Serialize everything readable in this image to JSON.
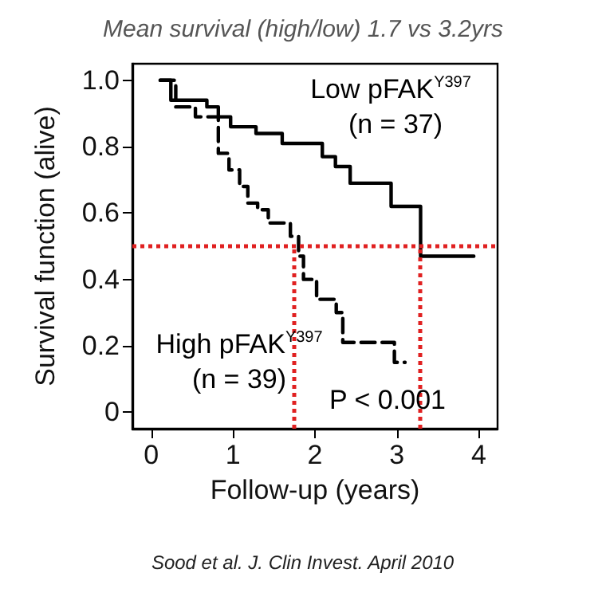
{
  "chart_data": {
    "type": "step",
    "title": "Mean survival (high/low) 1.7 vs 3.2yrs",
    "xlabel": "Follow-up (years)",
    "ylabel": "Survival function (alive)",
    "xlim": [
      -0.23,
      4.23
    ],
    "ylim": [
      -0.05,
      1.05
    ],
    "xticks": [
      0,
      1,
      2,
      3,
      4
    ],
    "yticks": [
      0,
      {
        "value": 0.2,
        "label": "0.2"
      },
      {
        "value": 0.4,
        "label": "0.4"
      },
      {
        "value": 0.6,
        "label": "0.6"
      },
      {
        "value": 0.8,
        "label": "0.8"
      },
      {
        "value": 1,
        "label": "1.0"
      }
    ],
    "series": [
      {
        "color": "#000000",
        "line_style": "solid",
        "x": [
          0.11,
          0.24,
          0.68,
          0.82,
          0.97,
          1.28,
          1.6,
          2.09,
          2.25,
          2.43,
          2.93,
          3.29,
          3.94
        ],
        "values": [
          1.0,
          0.94,
          0.92,
          0.89,
          0.86,
          0.84,
          0.81,
          0.77,
          0.74,
          0.69,
          0.62,
          0.47,
          0.47
        ]
      },
      {
        "color": "#000000",
        "line_style": "dashed",
        "x": [
          0.11,
          0.3,
          0.54,
          0.82,
          0.95,
          1.08,
          1.18,
          1.3,
          1.43,
          1.7,
          1.8,
          1.86,
          2.02,
          2.26,
          2.34,
          2.97,
          3.1
        ],
        "values": [
          1.0,
          0.92,
          0.89,
          0.78,
          0.73,
          0.68,
          0.63,
          0.61,
          0.57,
          0.53,
          0.47,
          0.4,
          0.34,
          0.3,
          0.21,
          0.15,
          0.15
        ]
      }
    ],
    "ref_lines": [
      {
        "axis": "y",
        "value": 0.5,
        "color": "#e02020",
        "line_style": "dotted"
      },
      {
        "axis": "x",
        "value": 1.75,
        "color": "#e02020",
        "line_style": "dotted"
      },
      {
        "axis": "x",
        "value": 3.29,
        "color": "#e02020",
        "line_style": "dotted"
      }
    ],
    "marker": "none",
    "grid": false,
    "annotations": [
      "Low pFAK$^{Y397}$",
      "(n = 37)",
      "High pFAK$^{Y397}$",
      "(n = 39)",
      "P < 0.001",
      "Sood et al. J. Clin Invest. April 2010"
    ]
  }
}
